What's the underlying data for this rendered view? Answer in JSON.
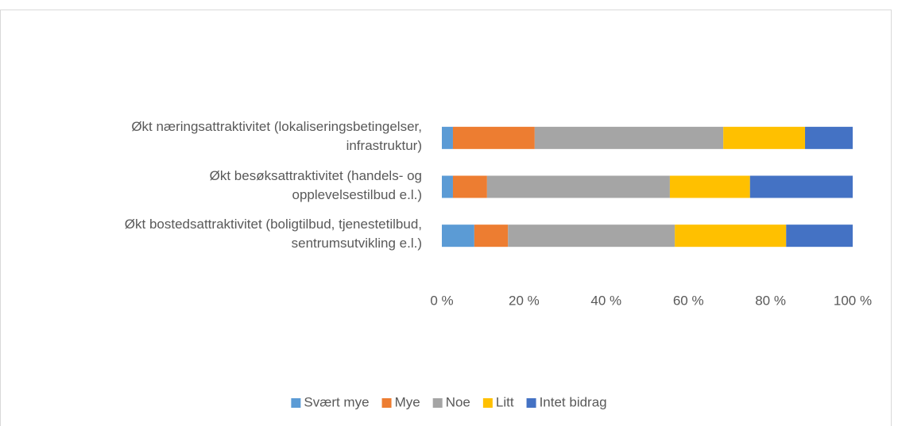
{
  "chart_data": {
    "type": "stacked-bar-horizontal",
    "categories": [
      "Økt næringsattraktivitet (lokaliseringsbetingelser,\ninfrastruktur)",
      "Økt besøksattraktivitet (handels- og\nopplevelsestilbud e.l.)",
      "Økt bostedsattraktivitet (boligtilbud, tjenestetilbud,\nsentrumsutvikling e.l.)"
    ],
    "series": [
      {
        "name": "Svært mye",
        "color": "#5b9bd5",
        "values": [
          2.7,
          2.7,
          7.9
        ]
      },
      {
        "name": "Mye",
        "color": "#ed7d31",
        "values": [
          19.9,
          8.3,
          8.2
        ]
      },
      {
        "name": "Noe",
        "color": "#a5a5a5",
        "values": [
          45.9,
          44.5,
          40.6
        ]
      },
      {
        "name": "Litt",
        "color": "#ffc000",
        "values": [
          19.9,
          19.5,
          27.1
        ]
      },
      {
        "name": "Intet bidrag",
        "color": "#4472c4",
        "values": [
          11.6,
          25.0,
          16.2
        ]
      }
    ],
    "xlim": [
      0,
      100
    ],
    "xticks": [
      {
        "value": 0,
        "label": "0 %"
      },
      {
        "value": 20,
        "label": "20 %"
      },
      {
        "value": 40,
        "label": "40 %"
      },
      {
        "value": 60,
        "label": "60 %"
      },
      {
        "value": 80,
        "label": "80 %"
      },
      {
        "value": 100,
        "label": "100 %"
      }
    ],
    "legend": "bottom"
  }
}
